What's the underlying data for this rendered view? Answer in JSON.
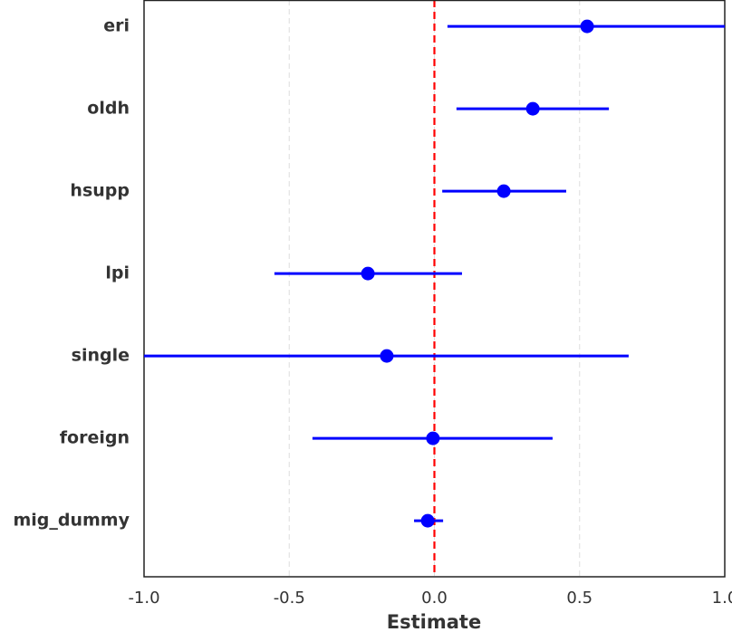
{
  "chart_data": {
    "type": "coefplot",
    "xlabel": "Estimate",
    "categories": [
      "eri",
      "oldh",
      "hsupp",
      "lpi",
      "single",
      "foreign",
      "mig_dummy"
    ],
    "values": [
      0.526,
      0.339,
      0.239,
      -0.229,
      -0.164,
      -0.005,
      -0.023
    ],
    "lower": [
      0.045,
      0.076,
      0.027,
      -0.551,
      -1.0,
      -0.42,
      -0.07
    ],
    "upper": [
      1.0,
      0.601,
      0.454,
      0.095,
      0.669,
      0.407,
      0.03
    ],
    "color": "#0000ff",
    "xlim": [
      -1.0,
      1.0
    ],
    "xticks": [
      {
        "value": -1.0,
        "label": "-1.0"
      },
      -0.5,
      {
        "value": 0.0,
        "label": "0.0"
      },
      0.5,
      {
        "value": 1.0,
        "label": "1.0"
      }
    ],
    "grid": true,
    "reference_line": {
      "value": 0,
      "color": "#ff0000"
    }
  }
}
